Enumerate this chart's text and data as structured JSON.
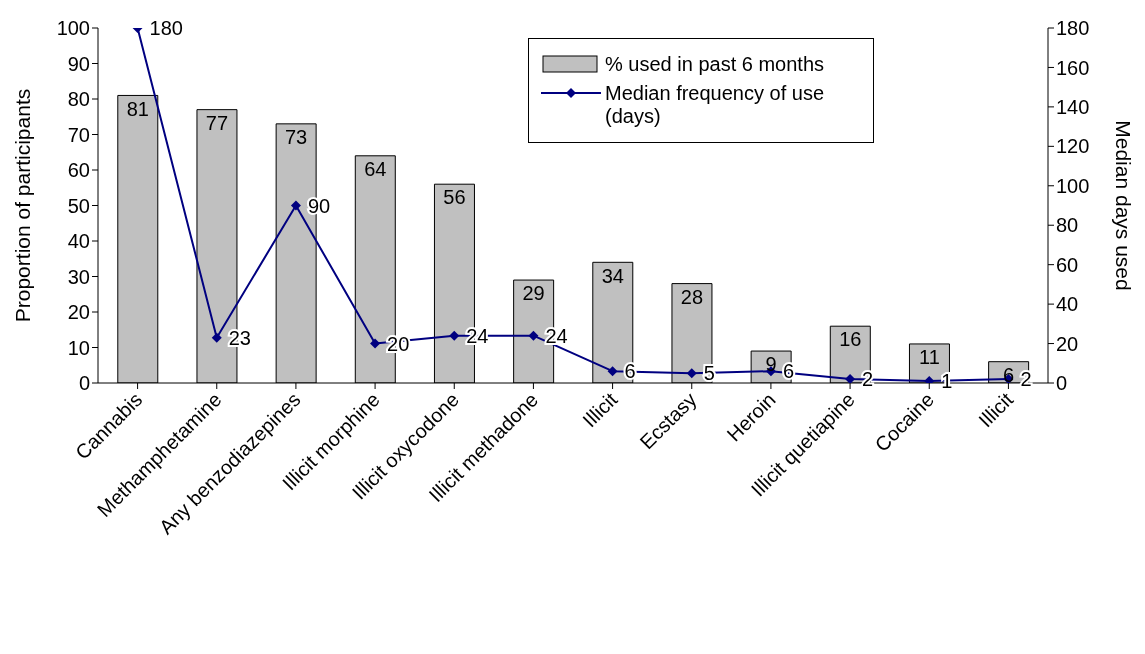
{
  "chart_data": {
    "type": "bar",
    "categories": [
      "Cannabis",
      "Methamphetamine",
      "Any benzodiazepines",
      "Illicit morphine",
      "Illicit oxycodone",
      "Illicit methadone",
      "Illicit",
      "Ecstasy",
      "Heroin",
      "Illicit quetiapine",
      "Cocaine",
      "Illicit"
    ],
    "series": [
      {
        "name": "% used in past 6 months",
        "color": "#c0c0c0",
        "values": [
          81,
          77,
          73,
          64,
          56,
          29,
          34,
          28,
          9,
          16,
          11,
          6
        ]
      },
      {
        "name": "Median frequency of use (days)",
        "type": "line",
        "axis": "y2",
        "color": "#000080",
        "marker": "diamond",
        "values": [
          180,
          23,
          90,
          20,
          24,
          24,
          6,
          5,
          6,
          2,
          1,
          2
        ]
      }
    ],
    "ylabel": "Proportion of participants",
    "y2label": "Median days used",
    "ylim": [
      0,
      100
    ],
    "yticks": [
      0,
      10,
      20,
      30,
      40,
      50,
      60,
      70,
      80,
      90,
      100
    ],
    "y2lim": [
      0,
      180
    ],
    "y2ticks": [
      0,
      20,
      40,
      60,
      80,
      100,
      120,
      140,
      160,
      180
    ],
    "data_labels": true,
    "grid": false,
    "legend": "top right"
  }
}
